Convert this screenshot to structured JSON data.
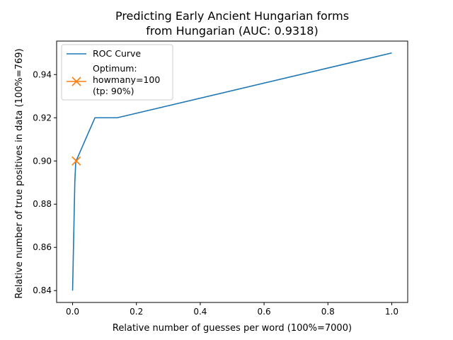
{
  "chart_data": {
    "type": "line",
    "title_lines": [
      "Predicting Early Ancient Hungarian forms",
      "from Hungarian (AUC: 0.9318)"
    ],
    "xlabel": "Relative number of guesses per word (100%=7000)",
    "ylabel": "Relative number of true positives in data (100%=769)",
    "xlim": [
      -0.05,
      1.05
    ],
    "ylim": [
      0.8345,
      0.9555
    ],
    "x_ticks": [
      0.0,
      0.2,
      0.4,
      0.6,
      0.8,
      1.0
    ],
    "x_tick_labels": [
      "0.0",
      "0.2",
      "0.4",
      "0.6",
      "0.8",
      "1.0"
    ],
    "y_ticks": [
      0.84,
      0.86,
      0.88,
      0.9,
      0.92,
      0.94
    ],
    "y_tick_labels": [
      "0.84",
      "0.86",
      "0.88",
      "0.90",
      "0.92",
      "0.94"
    ],
    "grid": false,
    "legend_placement": "upper-left",
    "series": [
      {
        "name": "ROC Curve",
        "color": "#1f77b4",
        "x": [
          0.0,
          0.007,
          0.01,
          0.014,
          0.07,
          0.14,
          1.0
        ],
        "y": [
          0.84,
          0.89,
          0.9,
          0.901,
          0.92,
          0.92,
          0.95
        ]
      }
    ],
    "optimum": {
      "legend_lines": [
        "Optimum:",
        "howmany=100",
        "(tp: 90%)"
      ],
      "color": "#ff7f0e",
      "marker": "x",
      "x": 0.0115,
      "y": 0.9
    }
  }
}
